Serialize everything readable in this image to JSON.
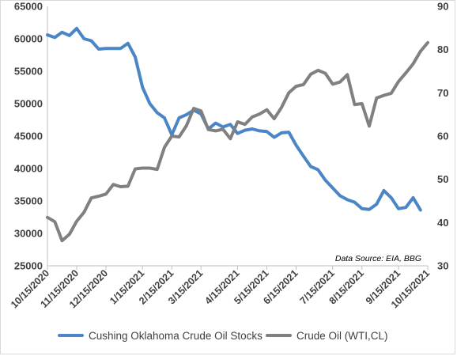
{
  "chart_data": {
    "type": "line",
    "title": "",
    "xlabel": "",
    "annotation": "Data Source: EIA, BBG",
    "x_ticks": [
      "10/15/2020",
      "11/15/2020",
      "12/15/2020",
      "1/15/2021",
      "2/15/2021",
      "3/15/2021",
      "4/15/2021",
      "5/15/2021",
      "6/15/2021",
      "7/15/2021",
      "8/15/2021",
      "9/15/2021",
      "10/15/2021"
    ],
    "x_tick_index": [
      0,
      4,
      8,
      13,
      17,
      21,
      26,
      30,
      34,
      39,
      43,
      48,
      52
    ],
    "y_left": {
      "min": 25000,
      "max": 65000,
      "ticks": [
        25000,
        30000,
        35000,
        40000,
        45000,
        50000,
        55000,
        60000,
        65000
      ]
    },
    "y_right": {
      "min": 30,
      "max": 90,
      "ticks": [
        30,
        40,
        50,
        60,
        70,
        80,
        90
      ]
    },
    "grid": false,
    "legend_position": "bottom",
    "series": [
      {
        "name": "Cushing Oklahoma Crude Oil Stocks",
        "axis": "left",
        "color": "#4a86c5",
        "values": [
          60600,
          60200,
          61000,
          60500,
          61600,
          60000,
          59700,
          58400,
          58500,
          58500,
          58500,
          59300,
          57200,
          52500,
          50000,
          48600,
          47800,
          45200,
          47800,
          48300,
          49000,
          48400,
          46100,
          47000,
          46400,
          46800,
          45400,
          45900,
          46100,
          45800,
          45700,
          44800,
          45500,
          45600,
          43600,
          41900,
          40300,
          39800,
          38200,
          37000,
          35800,
          35200,
          34800,
          33800,
          33700,
          34500,
          36600,
          35500,
          33800,
          34000,
          35500,
          33600
        ]
      },
      {
        "name": "Crude Oil (WTI,CL)",
        "axis": "right",
        "color": "#808080",
        "values": [
          41.2,
          40.2,
          35.8,
          37.3,
          40.3,
          42.4,
          45.7,
          46.1,
          46.6,
          48.8,
          48.3,
          48.4,
          52.4,
          52.6,
          52.6,
          52.3,
          57.4,
          60.0,
          59.8,
          62.4,
          66.4,
          65.8,
          61.5,
          61.2,
          61.6,
          59.4,
          63.3,
          62.7,
          64.4,
          65.1,
          66.1,
          64.0,
          66.6,
          70.0,
          71.5,
          71.9,
          74.3,
          75.2,
          74.5,
          72.0,
          72.5,
          74.2,
          67.3,
          67.5,
          62.3,
          68.8,
          69.4,
          69.9,
          72.6,
          74.6,
          76.7,
          79.6,
          81.6
        ]
      }
    ]
  }
}
